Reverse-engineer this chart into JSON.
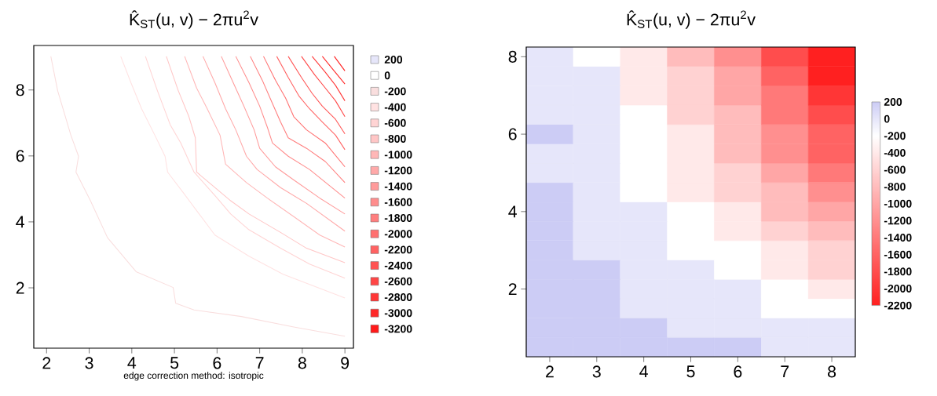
{
  "chart_data": [
    {
      "type": "line",
      "title": "K̂$_{ST}$(u, v) − 2πu$^{2}$v",
      "xlabel": "edge correction method: isotropic",
      "xlim": [
        1.7,
        9.2
      ],
      "ylim": [
        0.17,
        9.35
      ],
      "xticks": [
        2,
        3,
        4,
        5,
        6,
        7,
        8,
        9
      ],
      "yticks": [
        2,
        4,
        6,
        8
      ],
      "legend": "right",
      "series": [
        {
          "name": "200",
          "color": "#e6e6fa"
        },
        {
          "name": "0",
          "color": "#ffffff"
        },
        {
          "name": "-200",
          "color": "#f9dede",
          "x": [
            2.1,
            2.26,
            2.57,
            2.75,
            2.69,
            3.03,
            3.43,
            4.1,
            4.97,
            5.03,
            5.46,
            6.57,
            7.8,
            9.0
          ],
          "values": [
            9.02,
            7.98,
            6.63,
            5.99,
            5.51,
            4.64,
            3.52,
            2.49,
            2.01,
            1.53,
            1.33,
            1.13,
            0.81,
            0.53
          ]
        },
        {
          "name": "-400",
          "color": "#ffe2e2",
          "x": [
            3.74,
            3.98,
            4.23,
            4.54,
            4.78,
            4.84,
            5.21,
            5.58,
            5.95,
            6.75,
            7.55,
            9.0
          ],
          "values": [
            9.02,
            8.22,
            7.43,
            6.63,
            5.99,
            5.51,
            4.88,
            4.24,
            3.6,
            2.96,
            2.41,
            1.69
          ]
        },
        {
          "name": "-600",
          "color": "#ffd4d4",
          "x": [
            4.32,
            4.6,
            4.9,
            5.15,
            5.46,
            5.95,
            6.32,
            6.75,
            7.49,
            8.17,
            9.0
          ],
          "values": [
            9.02,
            7.98,
            6.95,
            6.39,
            5.51,
            4.8,
            4.24,
            3.76,
            3.2,
            2.72,
            2.29
          ]
        },
        {
          "name": "-800",
          "color": "#ffc6c6",
          "x": [
            4.81,
            5.09,
            5.34,
            5.49,
            5.52,
            5.95,
            6.32,
            6.75,
            7.49,
            8.1,
            9.0
          ],
          "values": [
            9.02,
            7.98,
            7.19,
            6.55,
            5.51,
            5.04,
            4.64,
            4.24,
            3.68,
            3.2,
            2.76
          ]
        },
        {
          "name": "-1000",
          "color": "#ffb7b7",
          "x": [
            5.24,
            5.52,
            5.77,
            6.07,
            6.2,
            6.69,
            7.18,
            7.8,
            8.41,
            9.0
          ],
          "values": [
            9.02,
            8.06,
            7.43,
            6.63,
            5.75,
            5.19,
            4.72,
            4.16,
            3.6,
            3.24
          ]
        },
        {
          "name": "-1200",
          "color": "#ffa9a9",
          "x": [
            5.67,
            5.95,
            6.2,
            6.44,
            6.69,
            6.94,
            7.49,
            8.1,
            9.0
          ],
          "values": [
            9.02,
            8.22,
            7.43,
            6.79,
            5.99,
            5.59,
            5.04,
            4.56,
            3.72
          ]
        },
        {
          "name": "-1400",
          "color": "#ff9b9b",
          "x": [
            6.1,
            6.38,
            6.63,
            6.87,
            7.0,
            7.37,
            7.8,
            8.41,
            9.0
          ],
          "values": [
            9.02,
            8.22,
            7.51,
            6.79,
            6.23,
            5.67,
            5.27,
            4.72,
            4.24
          ]
        },
        {
          "name": "-1600",
          "color": "#ff8d8d",
          "x": [
            6.44,
            6.75,
            7.0,
            7.18,
            7.3,
            7.67,
            8.17,
            9.0
          ],
          "values": [
            9.02,
            8.22,
            7.51,
            6.87,
            6.39,
            5.99,
            5.59,
            4.72
          ]
        },
        {
          "name": "-1800",
          "color": "#ff7e7e",
          "x": [
            6.78,
            7.06,
            7.3,
            7.49,
            7.67,
            8.1,
            8.54,
            9.0
          ],
          "values": [
            9.02,
            8.3,
            7.59,
            7.03,
            6.55,
            6.23,
            5.83,
            5.19
          ]
        },
        {
          "name": "-2000",
          "color": "#ff7070",
          "x": [
            7.09,
            7.37,
            7.61,
            7.8,
            8.1,
            8.54,
            9.0
          ],
          "values": [
            9.02,
            8.3,
            7.75,
            7.19,
            6.79,
            6.39,
            5.67
          ]
        },
        {
          "name": "-2200",
          "color": "#ff6262",
          "x": [
            7.4,
            7.67,
            7.92,
            8.17,
            8.47,
            8.78,
            9.0
          ],
          "values": [
            9.02,
            8.38,
            7.82,
            7.43,
            7.03,
            6.63,
            6.19
          ]
        },
        {
          "name": "-2400",
          "color": "#ff5353",
          "x": [
            7.67,
            7.98,
            8.23,
            8.47,
            8.78,
            9.0
          ],
          "values": [
            9.02,
            8.38,
            7.9,
            7.51,
            7.11,
            6.67
          ]
        },
        {
          "name": "-2600",
          "color": "#ff4545",
          "x": [
            7.98,
            8.29,
            8.54,
            8.78,
            9.0
          ],
          "values": [
            9.02,
            8.46,
            8.06,
            7.67,
            7.19
          ]
        },
        {
          "name": "-2800",
          "color": "#ff3737",
          "x": [
            8.23,
            8.54,
            8.78,
            9.0
          ],
          "values": [
            9.02,
            8.54,
            8.14,
            7.67
          ]
        },
        {
          "name": "-3000",
          "color": "#ff2828",
          "x": [
            8.47,
            8.72,
            9.0
          ],
          "values": [
            9.02,
            8.62,
            8.18
          ]
        },
        {
          "name": "-3200",
          "color": "#ff1a1a",
          "x": [
            8.75,
            9.0
          ],
          "values": [
            9.02,
            8.58
          ]
        }
      ]
    },
    {
      "type": "heatmap",
      "title": "K̂$_{ST}$(u, v) − 2πu$^{2}$v",
      "categories": [
        "2",
        "3",
        "4",
        "5",
        "6",
        "7",
        "8"
      ],
      "y_categories": [
        "8",
        null,
        null,
        null,
        "6",
        null,
        null,
        null,
        "4",
        null,
        null,
        null,
        "2",
        null,
        null,
        null
      ],
      "clim": [
        -2200,
        200
      ],
      "cticks": [
        {
          "value": 200,
          "label": "200"
        },
        {
          "value": 0,
          "label": "0"
        },
        {
          "value": -200,
          "label": "-200"
        },
        {
          "value": -400,
          "label": "-400"
        },
        {
          "value": -600,
          "label": "-600"
        },
        {
          "value": -800,
          "label": "-800"
        },
        {
          "value": -1000,
          "label": "-1000"
        },
        {
          "value": -1200,
          "label": "-1200"
        },
        {
          "value": -1400,
          "label": "-1400"
        },
        {
          "value": -1600,
          "label": "-1600"
        },
        {
          "value": -1800,
          "label": "-1800"
        },
        {
          "value": -2000,
          "label": "-2000"
        },
        {
          "value": -2200,
          "label": "-2200"
        }
      ],
      "cells": [
        [
          0,
          -200,
          -400,
          -800,
          -1200,
          -1800,
          -2200
        ],
        [
          0,
          0,
          -400,
          -600,
          -1000,
          -1600,
          -2200
        ],
        [
          0,
          0,
          -400,
          -600,
          -1000,
          -1400,
          -2000
        ],
        [
          0,
          0,
          -200,
          -600,
          -800,
          -1400,
          -1800
        ],
        [
          200,
          0,
          -200,
          -400,
          -800,
          -1200,
          -1600
        ],
        [
          0,
          0,
          -200,
          -400,
          -800,
          -1200,
          -1600
        ],
        [
          0,
          0,
          -200,
          -400,
          -600,
          -1000,
          -1400
        ],
        [
          200,
          0,
          -200,
          -400,
          -600,
          -800,
          -1200
        ],
        [
          200,
          0,
          0,
          -200,
          -400,
          -800,
          -1000
        ],
        [
          200,
          0,
          0,
          -200,
          -400,
          -600,
          -800
        ],
        [
          200,
          0,
          0,
          -200,
          -200,
          -400,
          -600
        ],
        [
          200,
          200,
          0,
          0,
          -200,
          -400,
          -600
        ],
        [
          200,
          200,
          0,
          0,
          0,
          -200,
          -400
        ],
        [
          200,
          200,
          0,
          0,
          0,
          -200,
          -200
        ],
        [
          200,
          200,
          200,
          0,
          0,
          0,
          0
        ],
        [
          200,
          200,
          200,
          200,
          200,
          0,
          0
        ]
      ]
    }
  ]
}
